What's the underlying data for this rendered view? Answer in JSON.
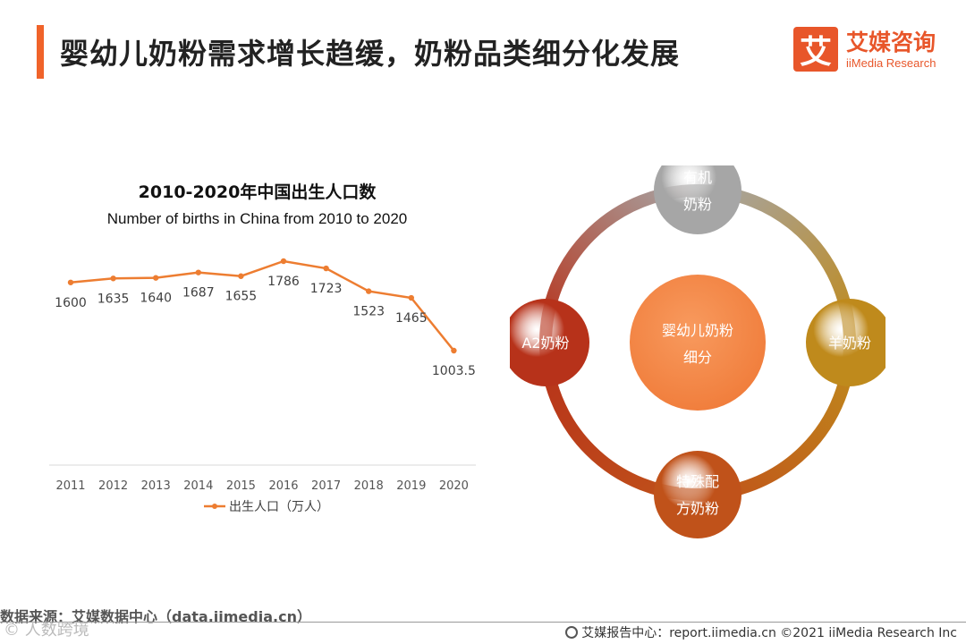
{
  "header": {
    "title": "婴幼儿奶粉需求增长趋缓，奶粉品类细分化发展",
    "logo_mark": "艾",
    "logo_cn": "艾媒咨询",
    "logo_en": "iiMedia Research"
  },
  "chart_data": {
    "type": "line",
    "title": "2010-2020年中国出生人口数",
    "subtitle": "Number of births in China from 2010 to 2020",
    "categories": [
      "2011",
      "2012",
      "2013",
      "2014",
      "2015",
      "2016",
      "2017",
      "2018",
      "2019",
      "2020"
    ],
    "series": [
      {
        "name": "出生人口（万人）",
        "values": [
          1600,
          1635,
          1640,
          1687,
          1655,
          1786,
          1723,
          1523,
          1465,
          1003.5
        ]
      }
    ],
    "value_labels": [
      "1600",
      "1635",
      "1640",
      "1687",
      "1655",
      "1786",
      "1723",
      "1523",
      "1465",
      "1003.5"
    ],
    "legend_position": "bottom",
    "line_color": "#ed7d31",
    "grid": false
  },
  "diagram": {
    "center": [
      "婴幼儿奶粉",
      "细分"
    ],
    "nodes": [
      {
        "key": "organic",
        "lines": [
          "有机",
          "奶粉"
        ],
        "color": "#a6a6a6"
      },
      {
        "key": "goat",
        "lines": [
          "羊奶粉"
        ],
        "color": "#bf8a1c"
      },
      {
        "key": "special",
        "lines": [
          "特殊配",
          "方奶粉"
        ],
        "color": "#c0521a"
      },
      {
        "key": "a2",
        "lines": [
          "A2奶粉"
        ],
        "color": "#b7321a"
      }
    ],
    "center_color": "#f07c3a"
  },
  "footer": {
    "source": "数据来源：艾媒数据中心（data.iimedia.cn）",
    "right": "艾媒报告中心：report.iimedia.cn  ©2021  iiMedia Research  Inc",
    "watermark": "©  人数跨境"
  }
}
